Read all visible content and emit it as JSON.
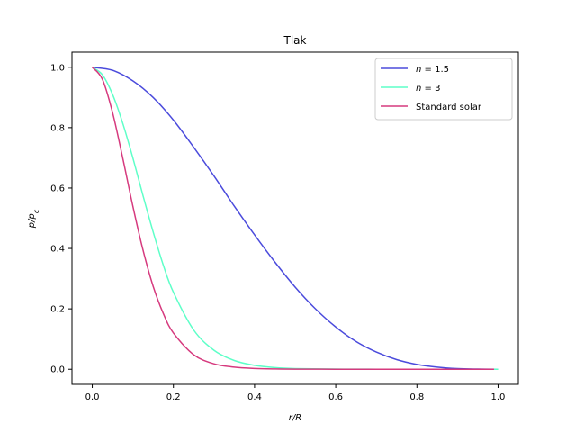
{
  "chart_data": {
    "type": "line",
    "title": "Tlak",
    "xlabel": "r/R",
    "ylabel": "p/p_c",
    "xlim": [
      -0.05,
      1.05
    ],
    "ylim": [
      -0.05,
      1.05
    ],
    "xticks": [
      0.0,
      0.2,
      0.4,
      0.6,
      0.8,
      1.0
    ],
    "xtick_labels": [
      "0.0",
      "0.2",
      "0.4",
      "0.6",
      "0.8",
      "1.0"
    ],
    "yticks": [
      0.0,
      0.2,
      0.4,
      0.6,
      0.8,
      1.0
    ],
    "ytick_labels": [
      "0.0",
      "0.2",
      "0.4",
      "0.6",
      "0.8",
      "1.0"
    ],
    "grid": false,
    "legend_position": "top-right",
    "series": [
      {
        "name": "n = 1.5",
        "color": "#4b4bdc",
        "x": [
          0.0,
          0.05,
          0.1,
          0.15,
          0.2,
          0.25,
          0.3,
          0.35,
          0.4,
          0.45,
          0.5,
          0.55,
          0.6,
          0.65,
          0.7,
          0.75,
          0.8,
          0.85,
          0.9,
          0.95,
          1.0
        ],
        "y": [
          1.0,
          0.99,
          0.955,
          0.9,
          0.825,
          0.735,
          0.64,
          0.54,
          0.445,
          0.355,
          0.272,
          0.2,
          0.14,
          0.092,
          0.057,
          0.032,
          0.016,
          0.007,
          0.002,
          0.0005,
          0.0
        ]
      },
      {
        "name": "n = 3",
        "color": "#5effc8",
        "x": [
          0.0,
          0.025,
          0.05,
          0.075,
          0.1,
          0.125,
          0.15,
          0.175,
          0.2,
          0.25,
          0.3,
          0.35,
          0.4,
          0.45,
          0.5,
          0.6,
          0.7,
          0.8,
          0.9,
          1.0
        ],
        "y": [
          1.0,
          0.975,
          0.91,
          0.815,
          0.7,
          0.575,
          0.455,
          0.345,
          0.255,
          0.13,
          0.063,
          0.029,
          0.013,
          0.0055,
          0.0023,
          0.0005,
          0.0001,
          0.0,
          0.0,
          0.0
        ]
      },
      {
        "name": "Standard solar",
        "color": "#d63a7e",
        "x": [
          0.0,
          0.025,
          0.05,
          0.075,
          0.1,
          0.125,
          0.15,
          0.175,
          0.2,
          0.25,
          0.3,
          0.35,
          0.4,
          0.45,
          0.5,
          0.6,
          0.7,
          0.8,
          0.9,
          0.99
        ],
        "y": [
          1.0,
          0.96,
          0.85,
          0.7,
          0.54,
          0.395,
          0.275,
          0.185,
          0.12,
          0.048,
          0.018,
          0.007,
          0.0027,
          0.001,
          0.0004,
          0.0001,
          0.0,
          0.0,
          0.0,
          0.0
        ]
      }
    ]
  }
}
